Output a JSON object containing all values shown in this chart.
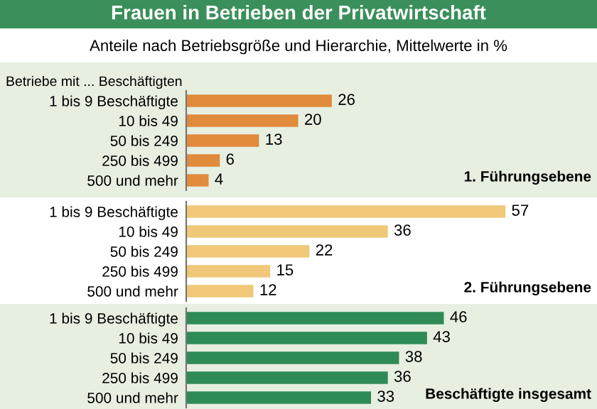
{
  "chart_data": [
    {
      "type": "bar",
      "orientation": "horizontal",
      "title": "Frauen in Betrieben der Privatwirtschaft",
      "subtitle": "Anteile nach Betriebsgröße und Hierarchie, Mittelwerte in %",
      "ylabel": "Betriebe mit ... Beschäftigten",
      "categories": [
        "1 bis 9 Beschäftigte",
        "10 bis 49",
        "50 bis 249",
        "250 bis 499",
        "500 und mehr"
      ],
      "values": [
        26,
        20,
        13,
        6,
        4
      ],
      "color": "#e08a3c",
      "tick_labels": "y",
      "data_labels": true,
      "grid": false,
      "legend": false,
      "annotations": [
        "1. Führungsebene"
      ]
    },
    {
      "type": "bar",
      "orientation": "horizontal",
      "categories": [
        "1 bis 9 Beschäftigte",
        "10 bis 49",
        "50 bis 249",
        "250 bis 499",
        "500 und mehr"
      ],
      "values": [
        57,
        36,
        22,
        15,
        12
      ],
      "color": "#f0c878",
      "tick_labels": "y",
      "data_labels": true,
      "grid": false,
      "legend": false,
      "annotations": [
        "2. Führungsebene"
      ]
    },
    {
      "type": "bar",
      "orientation": "horizontal",
      "categories": [
        "1 bis 9 Beschäftigte",
        "10 bis 49",
        "50 bis 249",
        "250 bis 499",
        "500 und mehr"
      ],
      "values": [
        46,
        43,
        38,
        36,
        33
      ],
      "color": "#2e8b57",
      "tick_labels": "y",
      "data_labels": true,
      "grid": false,
      "legend": false,
      "annotations": [
        "Beschäftigte insgesamt"
      ]
    }
  ]
}
